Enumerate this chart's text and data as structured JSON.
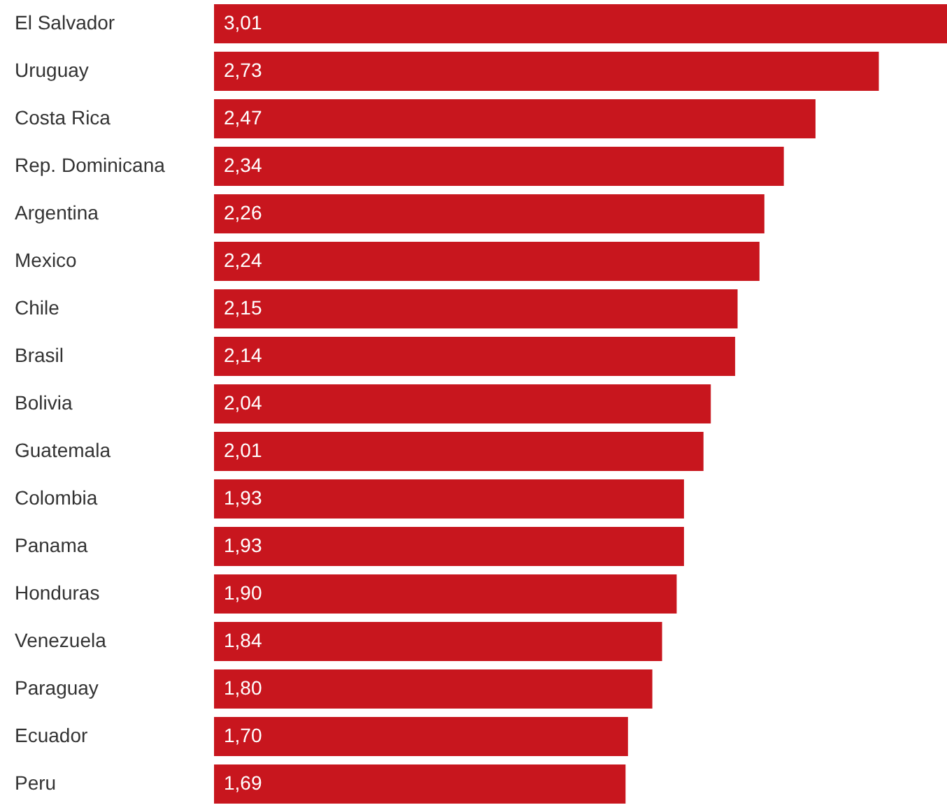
{
  "chart_data": {
    "type": "bar",
    "orientation": "horizontal",
    "categories": [
      "El Salvador",
      "Uruguay",
      "Costa Rica",
      "Rep. Dominicana",
      "Argentina",
      "Mexico",
      "Chile",
      "Brasil",
      "Bolivia",
      "Guatemala",
      "Colombia",
      "Panama",
      "Honduras",
      "Venezuela",
      "Paraguay",
      "Ecuador",
      "Peru"
    ],
    "values": [
      3.01,
      2.73,
      2.47,
      2.34,
      2.26,
      2.24,
      2.15,
      2.14,
      2.04,
      2.01,
      1.93,
      1.93,
      1.9,
      1.84,
      1.8,
      1.7,
      1.69
    ],
    "value_labels": [
      "3,01",
      "2,73",
      "2,47",
      "2,34",
      "2,26",
      "2,24",
      "2,15",
      "2,14",
      "2,04",
      "2,01",
      "1,93",
      "1,93",
      "1,90",
      "1,84",
      "1,80",
      "1,70",
      "1,69"
    ],
    "color": "#c8161e"
  }
}
